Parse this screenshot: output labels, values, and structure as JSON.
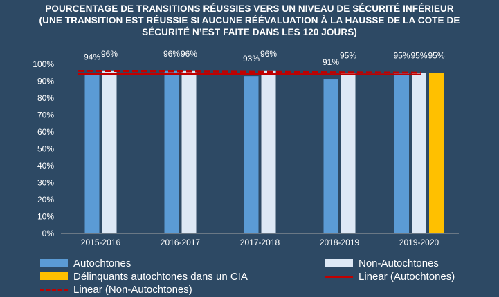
{
  "title_lines": [
    "POURCENTAGE DE TRANSITIONS RÉUSSIES VERS UN NIVEAU DE SÉCURITÉ INFÉRIEUR",
    "(UNE TRANSITION EST RÉUSSIE SI AUCUNE RÉÉVALUATION À LA HAUSSE DE LA COTE DE",
    "SÉCURITÉ N’EST FAITE DANS LES 120 JOURS)"
  ],
  "colors": {
    "background": "#2d4964",
    "autochtones": "#5b9bd5",
    "non_autochtones": "#dde8f5",
    "cia": "#ffc000",
    "trend": "#c00000"
  },
  "chart_data": {
    "type": "bar",
    "categories": [
      "2015-2016",
      "2016-2017",
      "2017-2018",
      "2018-2019",
      "2019-2020"
    ],
    "series": [
      {
        "name": "Autochtones",
        "values": [
          94,
          96,
          93,
          91,
          95
        ],
        "labels": [
          "94%",
          "96%",
          "93%",
          "91%",
          "95%"
        ]
      },
      {
        "name": "Non-Autochtones",
        "values": [
          96,
          96,
          96,
          95,
          95
        ],
        "labels": [
          "96%",
          "96%",
          "96%",
          "95%",
          "95%"
        ]
      },
      {
        "name": "Délinquants autochtones dans un CIA",
        "values": [
          null,
          null,
          null,
          null,
          95
        ],
        "labels": [
          "",
          "",
          "",
          "",
          "95%"
        ]
      }
    ],
    "trendlines": [
      {
        "name": "Linear (Autochtones)",
        "start": 94.4,
        "end": 94.0,
        "style": "solid"
      },
      {
        "name": "Linear (Non-Autochtones)",
        "start": 96.1,
        "end": 95.1,
        "style": "dashed"
      }
    ],
    "y_ticks": [
      "0%",
      "10%",
      "20%",
      "30%",
      "40%",
      "50%",
      "60%",
      "70%",
      "80%",
      "90%",
      "100%"
    ],
    "ylim": [
      0,
      100
    ],
    "legend_position": "bottom"
  },
  "legend": {
    "autochtones": "Autochtones",
    "non_autochtones": "Non-Autochtones",
    "cia": "Délinquants autochtones dans un CIA",
    "linear_autochtones": "Linear (Autochtones)",
    "linear_non_autochtones": "Linear (Non-Autochtones)"
  }
}
